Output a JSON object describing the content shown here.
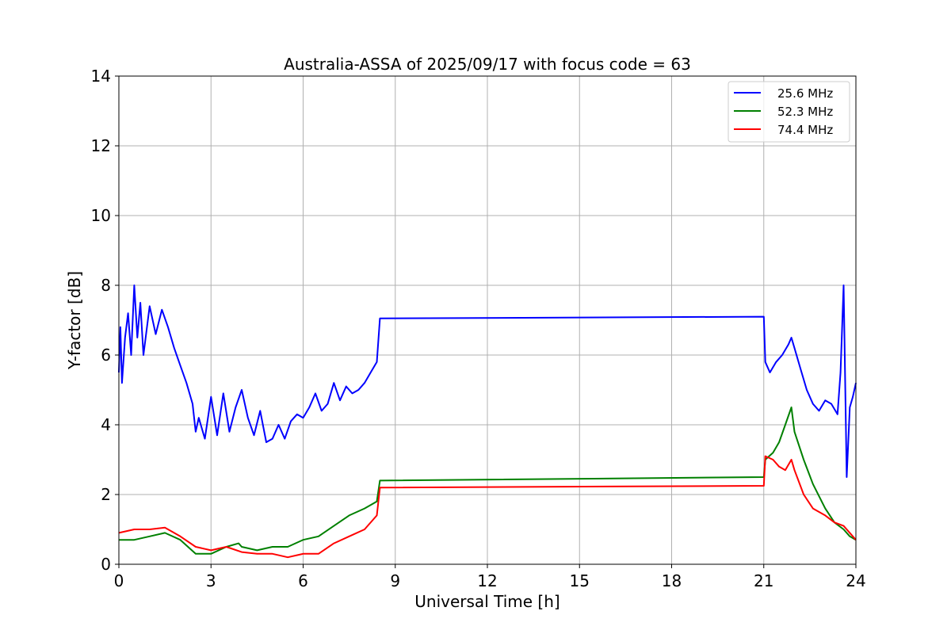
{
  "chart_data": {
    "type": "line",
    "title": "Australia-ASSA of 2025/09/17 with focus code = 63",
    "xlabel": "Universal Time [h]",
    "ylabel": "Y-factor [dB]",
    "xlim": [
      0,
      24
    ],
    "ylim": [
      0,
      14
    ],
    "xticks": [
      "0",
      "3",
      "6",
      "9",
      "12",
      "15",
      "18",
      "21",
      "24"
    ],
    "yticks": [
      "0",
      "2",
      "4",
      "6",
      "8",
      "10",
      "12",
      "14"
    ],
    "grid": true,
    "legend_position": "top-right",
    "series": [
      {
        "name": "25.6 MHz",
        "color": "#0000ff",
        "x": [
          0.0,
          0.05,
          0.1,
          0.2,
          0.3,
          0.4,
          0.5,
          0.6,
          0.7,
          0.8,
          1.0,
          1.2,
          1.4,
          1.6,
          1.8,
          2.0,
          2.2,
          2.4,
          2.5,
          2.6,
          2.8,
          3.0,
          3.2,
          3.4,
          3.6,
          3.8,
          4.0,
          4.2,
          4.4,
          4.6,
          4.8,
          5.0,
          5.2,
          5.4,
          5.6,
          5.8,
          6.0,
          6.2,
          6.4,
          6.6,
          6.8,
          7.0,
          7.2,
          7.4,
          7.6,
          7.8,
          8.0,
          8.2,
          8.4,
          8.5,
          21.0,
          21.05,
          21.2,
          21.4,
          21.6,
          21.8,
          21.9,
          22.0,
          22.2,
          22.4,
          22.6,
          22.8,
          23.0,
          23.2,
          23.4,
          23.5,
          23.6,
          23.7,
          23.8,
          23.9,
          24.0
        ],
        "y": [
          5.5,
          6.8,
          5.2,
          6.5,
          7.2,
          6.0,
          8.0,
          6.5,
          7.5,
          6.0,
          7.4,
          6.6,
          7.3,
          6.8,
          6.2,
          5.7,
          5.2,
          4.6,
          3.8,
          4.2,
          3.6,
          4.8,
          3.7,
          4.9,
          3.8,
          4.5,
          5.0,
          4.2,
          3.7,
          4.4,
          3.5,
          3.6,
          4.0,
          3.6,
          4.1,
          4.3,
          4.2,
          4.5,
          4.9,
          4.4,
          4.6,
          5.2,
          4.7,
          5.1,
          4.9,
          5.0,
          5.2,
          5.5,
          5.8,
          7.05,
          7.1,
          5.8,
          5.5,
          5.8,
          6.0,
          6.3,
          6.5,
          6.2,
          5.6,
          5.0,
          4.6,
          4.4,
          4.7,
          4.6,
          4.3,
          5.5,
          8.0,
          2.5,
          4.5,
          4.8,
          5.2
        ]
      },
      {
        "name": "52.3 MHz",
        "color": "#008000",
        "x": [
          0.0,
          0.5,
          1.0,
          1.5,
          2.0,
          2.5,
          3.0,
          3.5,
          3.9,
          4.0,
          4.5,
          5.0,
          5.5,
          6.0,
          6.5,
          7.0,
          7.5,
          8.0,
          8.4,
          8.5,
          21.0,
          21.05,
          21.3,
          21.5,
          21.7,
          21.9,
          22.0,
          22.3,
          22.6,
          23.0,
          23.3,
          23.6,
          23.8,
          24.0
        ],
        "y": [
          0.7,
          0.7,
          0.8,
          0.9,
          0.7,
          0.3,
          0.3,
          0.5,
          0.6,
          0.5,
          0.4,
          0.5,
          0.5,
          0.7,
          0.8,
          1.1,
          1.4,
          1.6,
          1.8,
          2.4,
          2.5,
          3.0,
          3.2,
          3.5,
          4.0,
          4.5,
          3.8,
          3.0,
          2.3,
          1.6,
          1.2,
          1.0,
          0.8,
          0.7
        ]
      },
      {
        "name": "74.4 MHz",
        "color": "#ff0000",
        "x": [
          0.0,
          0.5,
          1.0,
          1.5,
          2.0,
          2.5,
          3.0,
          3.5,
          4.0,
          4.5,
          5.0,
          5.5,
          6.0,
          6.5,
          7.0,
          7.5,
          8.0,
          8.4,
          8.5,
          21.0,
          21.05,
          21.3,
          21.5,
          21.7,
          21.9,
          22.0,
          22.3,
          22.6,
          23.0,
          23.3,
          23.6,
          23.8,
          24.0
        ],
        "y": [
          0.9,
          1.0,
          1.0,
          1.05,
          0.8,
          0.5,
          0.4,
          0.5,
          0.35,
          0.3,
          0.3,
          0.2,
          0.3,
          0.3,
          0.6,
          0.8,
          1.0,
          1.4,
          2.2,
          2.25,
          3.1,
          3.0,
          2.8,
          2.7,
          3.0,
          2.7,
          2.0,
          1.6,
          1.4,
          1.2,
          1.1,
          0.9,
          0.7
        ]
      }
    ]
  }
}
